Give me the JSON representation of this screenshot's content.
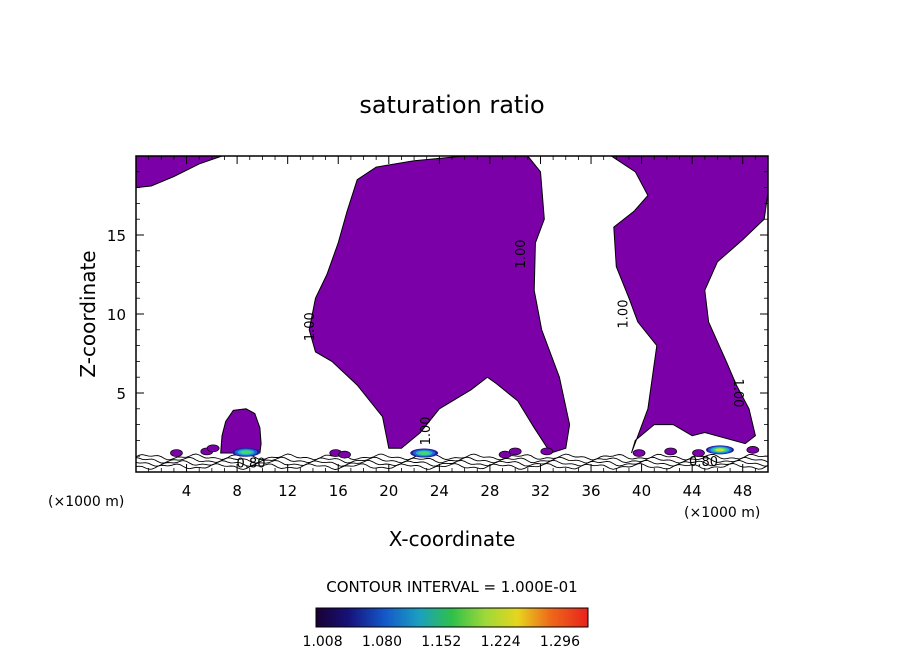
{
  "chart_data": {
    "type": "heatmap",
    "title": "saturation ratio",
    "xlabel": "X-coordinate",
    "ylabel": "Z-coordinate",
    "x_unit_left": "(×1000 m)",
    "x_unit_right": "(×1000 m)",
    "xlim": [
      0,
      50
    ],
    "ylim": [
      0,
      20
    ],
    "x_ticks": [
      4,
      8,
      12,
      16,
      20,
      24,
      28,
      32,
      36,
      40,
      44,
      48
    ],
    "y_ticks": [
      5,
      10,
      15
    ],
    "x_tick_labels": [
      "4",
      "8",
      "12",
      "16",
      "20",
      "24",
      "28",
      "32",
      "36",
      "40",
      "44",
      "48"
    ],
    "y_tick_labels": [
      "5",
      "10",
      "15"
    ],
    "contour_interval_text": "CONTOUR INTERVAL = 1.000E-01",
    "colorbar": {
      "range": [
        1.0,
        1.33
      ],
      "ticks": [
        "1.008",
        "1.080",
        "1.152",
        "1.224",
        "1.296"
      ]
    },
    "contour_labels": [
      {
        "text": "1.00",
        "x": 13.8,
        "y": 9.2,
        "rotation": -90
      },
      {
        "text": "1.00",
        "x": 30.5,
        "y": 13.8,
        "rotation": -90
      },
      {
        "text": "1.00",
        "x": 38.6,
        "y": 10.0,
        "rotation": -90
      },
      {
        "text": "1.00",
        "x": 23.0,
        "y": 2.6,
        "rotation": -90
      },
      {
        "text": "1.00",
        "x": 47.6,
        "y": 5.0,
        "rotation": 90
      },
      {
        "text": "0.80",
        "x": 9.1,
        "y": 0.5,
        "rotation": 0
      },
      {
        "text": "0.80",
        "x": 44.9,
        "y": 0.6,
        "rotation": 0
      }
    ],
    "regions": [
      {
        "name": "top-left",
        "level": 1.0,
        "points": [
          [
            0,
            20
          ],
          [
            6.8,
            20
          ],
          [
            5,
            19.5
          ],
          [
            3,
            18.7
          ],
          [
            1.2,
            18.1
          ],
          [
            0,
            18
          ]
        ]
      },
      {
        "name": "central-column",
        "level": 1.0,
        "points": [
          [
            31,
            20
          ],
          [
            32,
            19
          ],
          [
            32.3,
            16
          ],
          [
            31.6,
            14.5
          ],
          [
            31.5,
            11.5
          ],
          [
            32.1,
            9
          ],
          [
            33.5,
            6
          ],
          [
            34.3,
            3
          ],
          [
            34,
            1.5
          ],
          [
            32.8,
            1.2
          ],
          [
            31.5,
            2.8
          ],
          [
            30.2,
            4.5
          ],
          [
            28.5,
            5.6
          ],
          [
            27.8,
            6
          ],
          [
            26.5,
            5.2
          ],
          [
            24,
            4
          ],
          [
            22.5,
            2.5
          ],
          [
            21,
            1.5
          ],
          [
            20,
            1.5
          ],
          [
            19.5,
            3.5
          ],
          [
            17.5,
            5.5
          ],
          [
            15.5,
            7
          ],
          [
            14.2,
            7.6
          ],
          [
            13.7,
            9
          ],
          [
            14.2,
            11
          ],
          [
            15.1,
            12.5
          ],
          [
            16,
            14.5
          ],
          [
            16.7,
            16.5
          ],
          [
            17.5,
            18.5
          ],
          [
            19,
            19.3
          ],
          [
            22,
            19.7
          ],
          [
            26,
            20
          ]
        ]
      },
      {
        "name": "right-column",
        "level": 1.0,
        "points": [
          [
            37.6,
            20
          ],
          [
            50,
            20
          ],
          [
            50,
            17.7
          ],
          [
            49.7,
            16
          ],
          [
            48,
            14.7
          ],
          [
            46,
            13.3
          ],
          [
            45,
            11.5
          ],
          [
            45.3,
            9.5
          ],
          [
            46.7,
            7
          ],
          [
            47.5,
            5.5
          ],
          [
            48.5,
            4
          ],
          [
            49,
            2.3
          ],
          [
            48.2,
            1.8
          ],
          [
            45,
            2.5
          ],
          [
            44,
            2.3
          ],
          [
            42.5,
            3
          ],
          [
            41,
            3
          ],
          [
            39.5,
            2
          ],
          [
            39.2,
            1.2
          ],
          [
            40.5,
            4
          ],
          [
            41.2,
            8
          ],
          [
            39.7,
            9.5
          ],
          [
            39,
            11
          ],
          [
            38,
            13
          ],
          [
            37.8,
            15.5
          ],
          [
            39.4,
            16.5
          ],
          [
            40.5,
            17.5
          ],
          [
            39.5,
            19
          ]
        ]
      },
      {
        "name": "small-blob",
        "level": 1.0,
        "points": [
          [
            6.7,
            1.2
          ],
          [
            6.8,
            2.3
          ],
          [
            7.1,
            3.2
          ],
          [
            7.7,
            3.9
          ],
          [
            8.7,
            4
          ],
          [
            9.4,
            3.7
          ],
          [
            9.8,
            2.8
          ],
          [
            9.9,
            1.8
          ],
          [
            9.8,
            1.2
          ]
        ]
      }
    ],
    "hot_spots": [
      {
        "x": 8.7,
        "z": 1.25,
        "peak": 1.2
      },
      {
        "x": 22.8,
        "z": 1.2,
        "peak": 1.18
      },
      {
        "x": 46.2,
        "z": 1.4,
        "peak": 1.25
      }
    ]
  }
}
